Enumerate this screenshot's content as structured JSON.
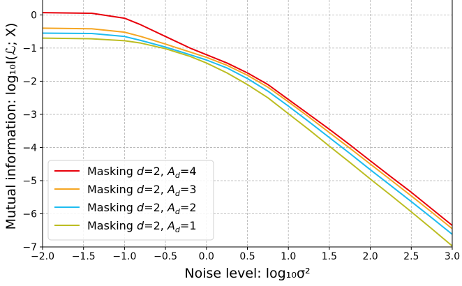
{
  "chart_data": {
    "type": "line",
    "xlabel": "Noise level: log₁₀σ²",
    "ylabel": "Mutual information: log₁₀I(ℒ; X)",
    "xlim": [
      -2.0,
      3.0
    ],
    "ylim": [
      -7,
      0.45
    ],
    "xticks": [
      "−2.0",
      "−1.5",
      "−1.0",
      "−0.5",
      "0.0",
      "0.5",
      "1.0",
      "1.5",
      "2.0",
      "2.5",
      "3.0"
    ],
    "xtick_values": [
      -2.0,
      -1.5,
      -1.0,
      -0.5,
      0.0,
      0.5,
      1.0,
      1.5,
      2.0,
      2.5,
      3.0
    ],
    "yticks": [
      "0",
      "−1",
      "−2",
      "−3",
      "−4",
      "−5",
      "−6",
      "−7"
    ],
    "ytick_values": [
      0,
      -1,
      -2,
      -3,
      -4,
      -5,
      -6,
      -7
    ],
    "grid": true,
    "legend_position": "lower-left",
    "series": [
      {
        "name": "Masking d=2, A_d=4",
        "label_prefix": "Masking ",
        "label_d": "d",
        "label_mid": "=2, ",
        "label_a": "A",
        "label_sub": "d",
        "label_val": "=4",
        "color": "#e8000b",
        "x": [
          -2.0,
          -1.4,
          -1.0,
          -0.8,
          -0.5,
          -0.2,
          0.0,
          0.25,
          0.5,
          0.75,
          1.0,
          1.25,
          1.5,
          1.75,
          2.0,
          2.25,
          2.5,
          2.75,
          3.0
        ],
        "y": [
          0.07,
          0.05,
          -0.1,
          -0.3,
          -0.65,
          -1.0,
          -1.2,
          -1.45,
          -1.75,
          -2.1,
          -2.55,
          -3.0,
          -3.45,
          -3.92,
          -4.4,
          -4.88,
          -5.35,
          -5.85,
          -6.35
        ]
      },
      {
        "name": "Masking d=2, A_d=3",
        "label_prefix": "Masking ",
        "label_d": "d",
        "label_mid": "=2, ",
        "label_a": "A",
        "label_sub": "d",
        "label_val": "=3",
        "color": "#f5a623",
        "x": [
          -2.0,
          -1.4,
          -1.0,
          -0.8,
          -0.5,
          -0.2,
          0.0,
          0.25,
          0.5,
          0.75,
          1.0,
          1.25,
          1.5,
          1.75,
          2.0,
          2.25,
          2.5,
          2.75,
          3.0
        ],
        "y": [
          -0.4,
          -0.42,
          -0.52,
          -0.65,
          -0.88,
          -1.12,
          -1.28,
          -1.52,
          -1.82,
          -2.18,
          -2.62,
          -3.08,
          -3.55,
          -4.02,
          -4.5,
          -4.98,
          -5.46,
          -5.95,
          -6.45
        ]
      },
      {
        "name": "Masking d=2, A_d=2",
        "label_prefix": "Masking ",
        "label_d": "d",
        "label_mid": "=2, ",
        "label_a": "A",
        "label_sub": "d",
        "label_val": "=2",
        "color": "#1ebcf0",
        "x": [
          -2.0,
          -1.4,
          -1.0,
          -0.8,
          -0.5,
          -0.2,
          0.0,
          0.25,
          0.5,
          0.75,
          1.0,
          1.25,
          1.5,
          1.75,
          2.0,
          2.25,
          2.5,
          2.75,
          3.0
        ],
        "y": [
          -0.55,
          -0.56,
          -0.65,
          -0.77,
          -0.97,
          -1.2,
          -1.36,
          -1.6,
          -1.92,
          -2.3,
          -2.75,
          -3.22,
          -3.7,
          -4.18,
          -4.67,
          -5.15,
          -5.63,
          -6.12,
          -6.62
        ]
      },
      {
        "name": "Masking d=2, A_d=1",
        "label_prefix": "Masking ",
        "label_d": "d",
        "label_mid": "=2, ",
        "label_a": "A",
        "label_sub": "d",
        "label_val": "=1",
        "color": "#bcbd22",
        "x": [
          -2.0,
          -1.4,
          -1.0,
          -0.8,
          -0.5,
          -0.2,
          0.0,
          0.25,
          0.5,
          0.75,
          1.0,
          1.25,
          1.5,
          1.75,
          2.0,
          2.25,
          2.5,
          2.75,
          3.0
        ],
        "y": [
          -0.7,
          -0.72,
          -0.78,
          -0.85,
          -1.02,
          -1.25,
          -1.45,
          -1.75,
          -2.1,
          -2.5,
          -2.98,
          -3.46,
          -3.96,
          -4.45,
          -4.95,
          -5.44,
          -5.94,
          -6.45,
          -6.97
        ]
      }
    ]
  }
}
